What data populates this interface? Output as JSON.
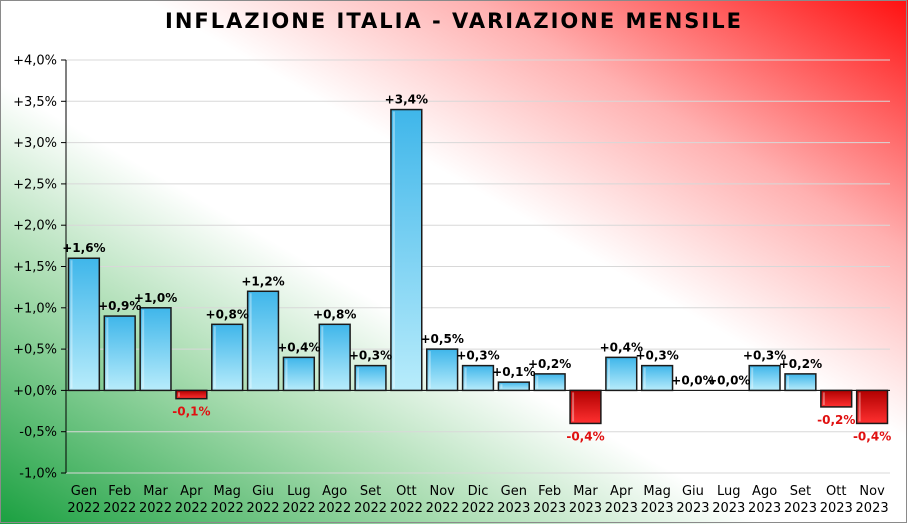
{
  "chart_data": {
    "type": "bar",
    "title": "INFLAZIONE ITALIA - VARIAZIONE MENSILE",
    "xlabel": "",
    "ylabel": "",
    "ylim": [
      -1.0,
      4.0
    ],
    "yticks": [
      "+4,0%",
      "+3,5%",
      "+3,0%",
      "+2,5%",
      "+2,0%",
      "+1,5%",
      "+1,0%",
      "+0,5%",
      "+0,0%",
      "-0,5%",
      "-1,0%"
    ],
    "ytick_values": [
      4.0,
      3.5,
      3.0,
      2.5,
      2.0,
      1.5,
      1.0,
      0.5,
      0.0,
      -0.5,
      -1.0
    ],
    "grid": true,
    "categories": [
      [
        "Gen",
        "2022"
      ],
      [
        "Feb",
        "2022"
      ],
      [
        "Mar",
        "2022"
      ],
      [
        "Apr",
        "2022"
      ],
      [
        "Mag",
        "2022"
      ],
      [
        "Giu",
        "2022"
      ],
      [
        "Lug",
        "2022"
      ],
      [
        "Ago",
        "2022"
      ],
      [
        "Set",
        "2022"
      ],
      [
        "Ott",
        "2022"
      ],
      [
        "Nov",
        "2022"
      ],
      [
        "Dic",
        "2022"
      ],
      [
        "Gen",
        "2023"
      ],
      [
        "Feb",
        "2023"
      ],
      [
        "Mar",
        "2023"
      ],
      [
        "Apr",
        "2023"
      ],
      [
        "Mag",
        "2023"
      ],
      [
        "Giu",
        "2023"
      ],
      [
        "Lug",
        "2023"
      ],
      [
        "Ago",
        "2023"
      ],
      [
        "Set",
        "2023"
      ],
      [
        "Ott",
        "2023"
      ],
      [
        "Nov",
        "2023"
      ]
    ],
    "values": [
      1.6,
      0.9,
      1.0,
      -0.1,
      0.8,
      1.2,
      0.4,
      0.8,
      0.3,
      3.4,
      0.5,
      0.3,
      0.1,
      0.2,
      -0.4,
      0.4,
      0.3,
      0.0,
      0.0,
      0.3,
      0.2,
      -0.2,
      -0.4
    ],
    "data_labels": [
      "+1,6%",
      "+0,9%",
      "+1,0%",
      "-0,1%",
      "+0,8%",
      "+1,2%",
      "+0,4%",
      "+0,8%",
      "+0,3%",
      "+3,4%",
      "+0,5%",
      "+0,3%",
      "+0,1%",
      "+0,2%",
      "-0,4%",
      "+0,4%",
      "+0,3%",
      "+0,0%",
      "+0,0%",
      "+0,3%",
      "+0,2%",
      "-0,2%",
      "-0,4%"
    ],
    "colors": {
      "positive_bar": "#5bc8f0",
      "negative_bar": "#e01010",
      "positive_label": "#000000",
      "negative_label": "#e01010",
      "background_green": "#1aa040",
      "background_red": "#ff1010"
    }
  }
}
